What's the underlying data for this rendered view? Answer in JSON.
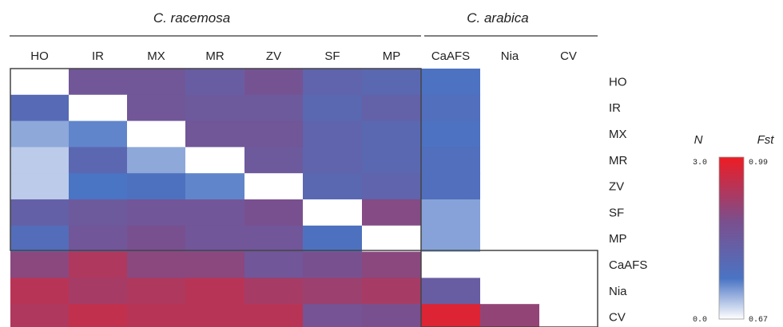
{
  "chart_data": {
    "type": "heatmap",
    "groups": [
      {
        "name": "C. racemosa",
        "columns": [
          "HO",
          "IR",
          "MX",
          "MR",
          "ZV",
          "SF",
          "MP"
        ]
      },
      {
        "name": "C. arabica",
        "columns": [
          "CaAFS",
          "Nia",
          "CV"
        ]
      }
    ],
    "columns": [
      "HO",
      "IR",
      "MX",
      "MR",
      "ZV",
      "SF",
      "MP",
      "CaAFS",
      "Nia",
      "CV"
    ],
    "rows": [
      "HO",
      "IR",
      "MX",
      "MR",
      "ZV",
      "SF",
      "MP",
      "CaAFS",
      "Nia",
      "CV"
    ],
    "lower_triangle_statistic": "Fst",
    "upper_triangle_statistic": "N",
    "N_values": [
      [
        null,
        1.6,
        1.6,
        1.4,
        1.7,
        1.2,
        1.1,
        0.8,
        null,
        null
      ],
      [
        null,
        null,
        1.6,
        1.5,
        1.5,
        1.1,
        1.3,
        0.9,
        null,
        null
      ],
      [
        null,
        null,
        null,
        1.6,
        1.6,
        1.2,
        1.1,
        0.8,
        null,
        null
      ],
      [
        null,
        null,
        null,
        null,
        1.5,
        1.2,
        1.1,
        0.9,
        null,
        null
      ],
      [
        null,
        null,
        null,
        null,
        null,
        1.1,
        1.2,
        0.9,
        null,
        null
      ],
      [
        null,
        null,
        null,
        null,
        null,
        null,
        1.9,
        0.5,
        null,
        null
      ],
      [
        null,
        null,
        null,
        null,
        null,
        null,
        null,
        0.5,
        null,
        null
      ],
      [
        null,
        null,
        null,
        null,
        null,
        null,
        null,
        null,
        null,
        null
      ],
      [
        null,
        null,
        null,
        null,
        null,
        null,
        null,
        null,
        null,
        null
      ],
      [
        null,
        null,
        null,
        null,
        null,
        null,
        null,
        null,
        null,
        null
      ]
    ],
    "Fst_values": [
      [
        null,
        null,
        null,
        null,
        null,
        null,
        null,
        null,
        null,
        null
      ],
      [
        0.78,
        null,
        null,
        null,
        null,
        null,
        null,
        null,
        null,
        null
      ],
      [
        0.72,
        0.74,
        null,
        null,
        null,
        null,
        null,
        null,
        null,
        null
      ],
      [
        0.7,
        0.79,
        0.72,
        null,
        null,
        null,
        null,
        null,
        null,
        null
      ],
      [
        0.7,
        0.75,
        0.76,
        0.74,
        null,
        null,
        null,
        null,
        null,
        null
      ],
      [
        0.81,
        0.83,
        0.84,
        0.84,
        0.86,
        null,
        null,
        null,
        null,
        null
      ],
      [
        0.77,
        0.84,
        0.86,
        0.84,
        0.84,
        0.76,
        null,
        null,
        null,
        null
      ],
      [
        0.88,
        0.92,
        0.88,
        0.88,
        0.84,
        0.86,
        0.88,
        null,
        null,
        null
      ],
      [
        0.93,
        0.91,
        0.92,
        0.93,
        0.91,
        0.9,
        0.91,
        0.82,
        null,
        null
      ],
      [
        0.92,
        0.94,
        0.93,
        0.93,
        0.93,
        0.85,
        0.86,
        0.97,
        0.89,
        null
      ]
    ],
    "legend": {
      "N": {
        "label": "N",
        "min": "0.0",
        "max": "3.0"
      },
      "Fst": {
        "label": "Fst",
        "min": "0.67",
        "max": "0.99"
      },
      "colors": [
        "#ffffff",
        "#4a74c4",
        "#7a4f8e",
        "#ee1c24"
      ]
    }
  }
}
